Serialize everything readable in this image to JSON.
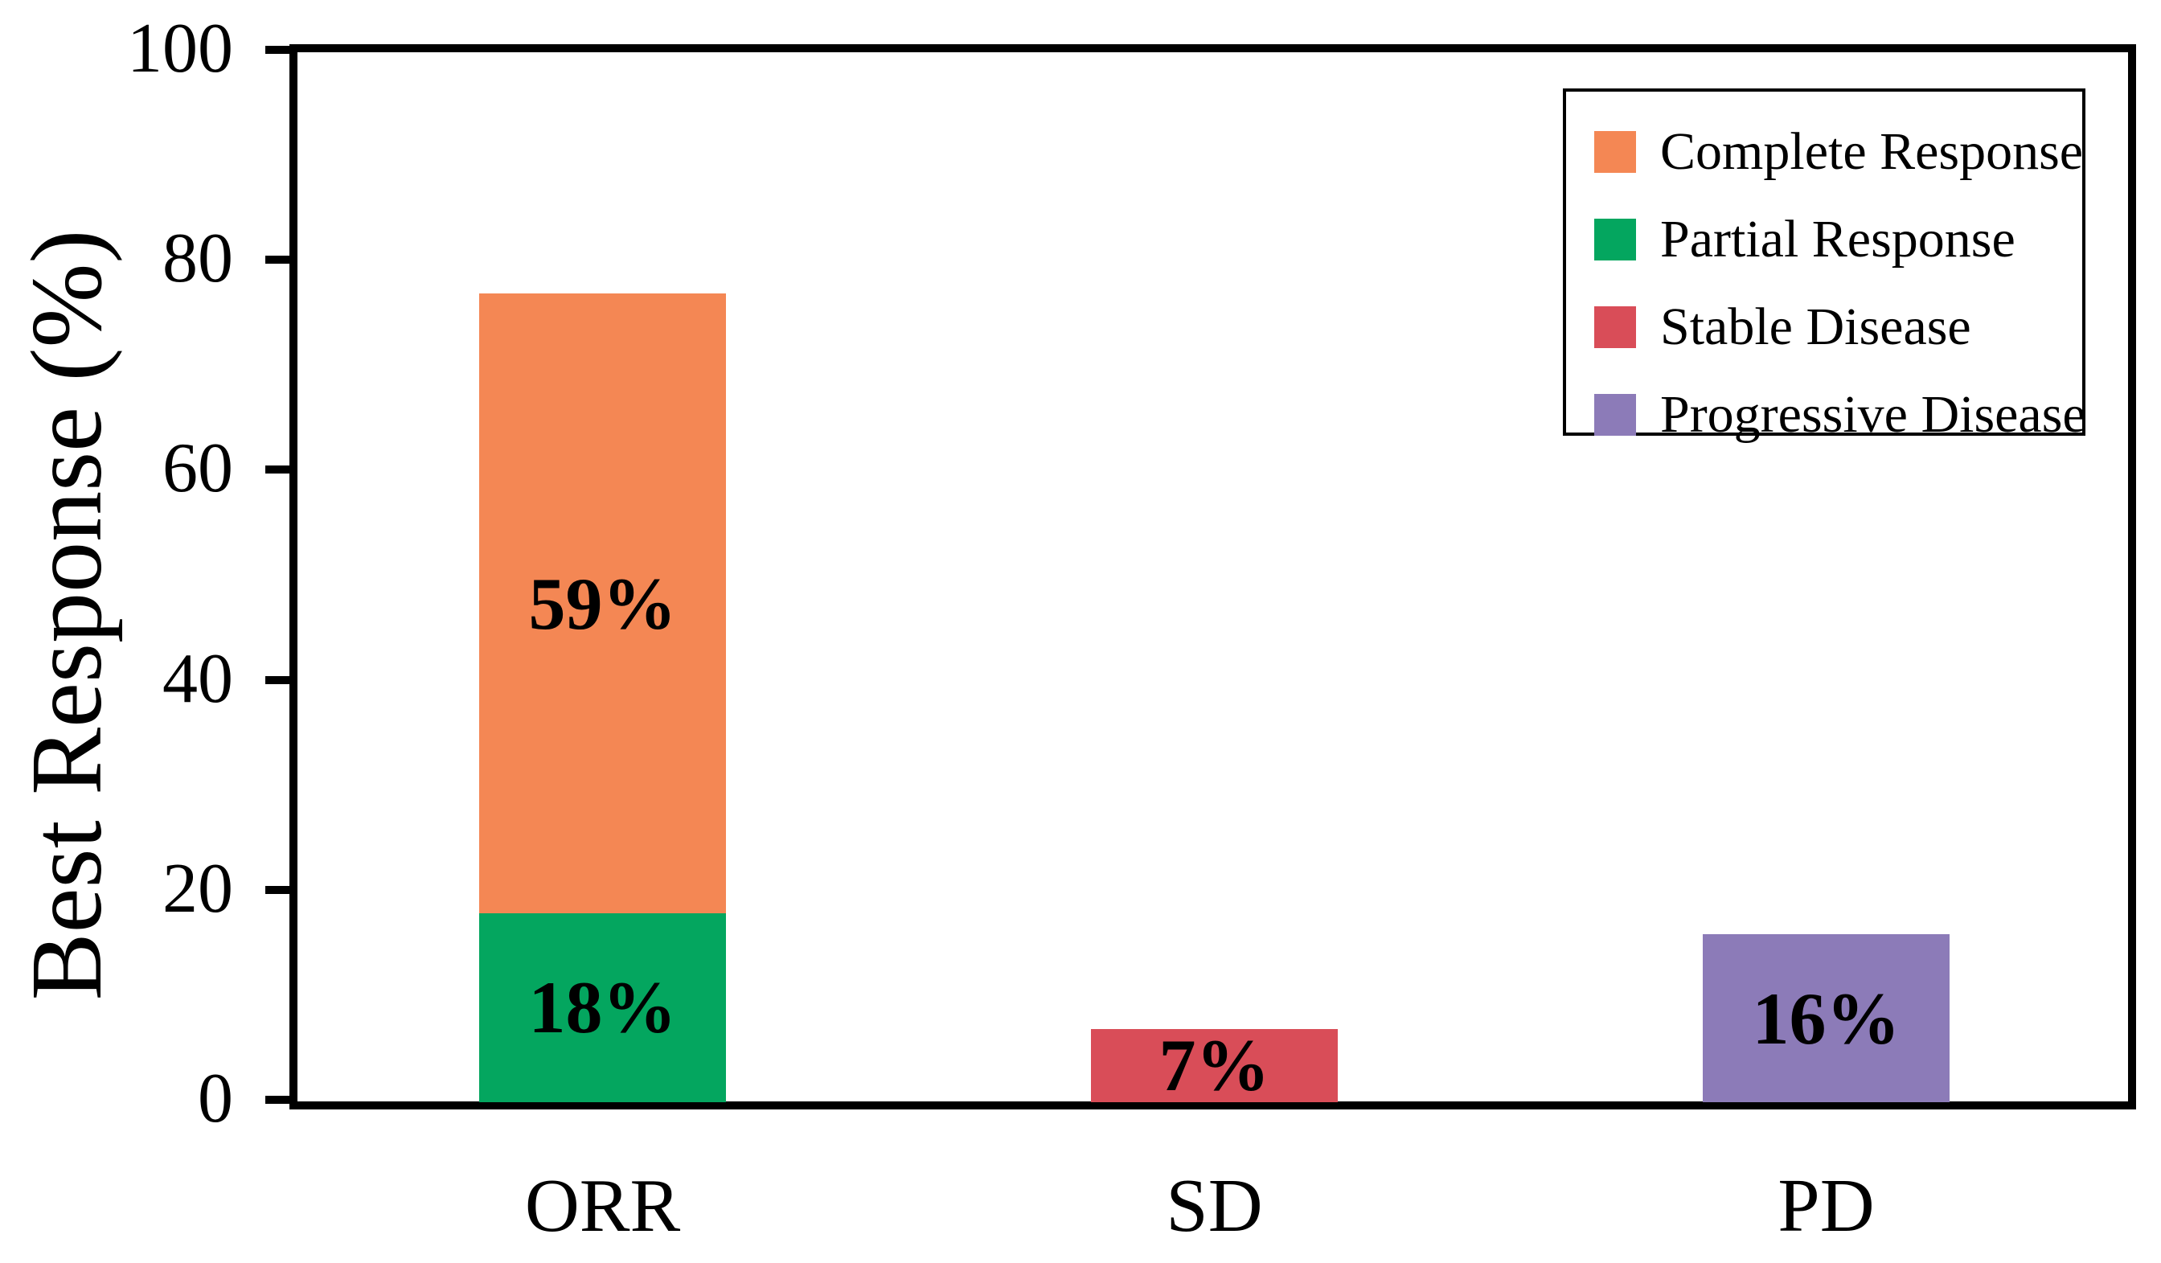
{
  "figure": {
    "background_color": "#FFFFFF",
    "frame_color": "#000000",
    "text_color": "#000000"
  },
  "chart_data": {
    "type": "bar",
    "stacked": true,
    "title": "",
    "xlabel": "",
    "ylabel": "Best Response (%)",
    "ylim": [
      0,
      100
    ],
    "yticks": [
      0,
      20,
      40,
      60,
      80,
      100
    ],
    "grid": false,
    "legend_position": "upper right",
    "categories": [
      "ORR",
      "SD",
      "PD"
    ],
    "series": [
      {
        "name": "Complete Response",
        "color": "#F48754",
        "values": [
          59,
          0,
          0
        ]
      },
      {
        "name": "Partial Response",
        "color": "#04A65F",
        "values": [
          18,
          0,
          0
        ]
      },
      {
        "name": "Stable Disease",
        "color": "#D94D58",
        "values": [
          0,
          7,
          0
        ]
      },
      {
        "name": "Progressive Disease",
        "color": "#8C7BB8",
        "values": [
          0,
          0,
          16
        ]
      }
    ],
    "bars": [
      {
        "category": "ORR",
        "segments": [
          {
            "series": "Partial Response",
            "value": 18,
            "label": "18%"
          },
          {
            "series": "Complete Response",
            "value": 59,
            "label": "59%"
          }
        ]
      },
      {
        "category": "SD",
        "segments": [
          {
            "series": "Stable Disease",
            "value": 7,
            "label": "7%"
          }
        ]
      },
      {
        "category": "PD",
        "segments": [
          {
            "series": "Progressive Disease",
            "value": 16,
            "label": "16%"
          }
        ]
      }
    ],
    "legend_items": [
      {
        "label": "Complete Response",
        "color": "#F48754"
      },
      {
        "label": "Partial Response",
        "color": "#04A65F"
      },
      {
        "label": "Stable Disease",
        "color": "#D94D58"
      },
      {
        "label": "Progressive Disease",
        "color": "#8C7BB8"
      }
    ]
  }
}
